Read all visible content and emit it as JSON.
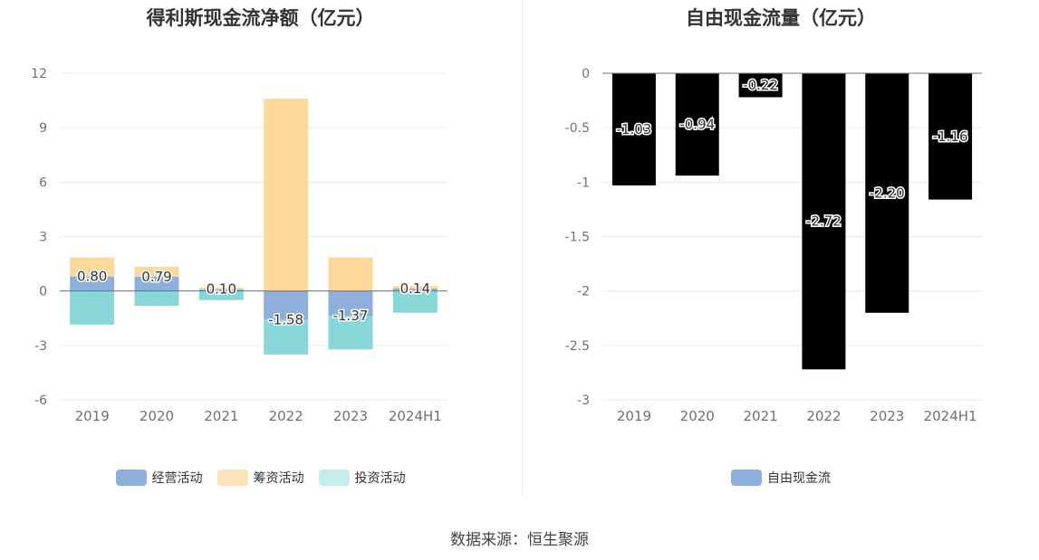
{
  "source": "数据来源：恒生聚源",
  "colors": {
    "operating": "#8eaedc",
    "financing": "#fdd89b",
    "investing": "#88d6d8",
    "grid": "#e6e9f0",
    "axis": "#6e7079",
    "tick_text": "#6e7079"
  },
  "legend_swatch_colors": {
    "operating": "#8eaedc",
    "financing": "#fde3bc",
    "investing": "#c5ecec",
    "fcf": "#8eaedc"
  },
  "chart_data": [
    {
      "id": "left",
      "type": "bar",
      "stacked": true,
      "title": "得利斯现金流净额（亿元）",
      "categories": [
        "2019",
        "2020",
        "2021",
        "2022",
        "2023",
        "2024H1"
      ],
      "y_ticks": [
        "12",
        "9",
        "6",
        "3",
        "0",
        "-3",
        "-6"
      ],
      "ylim": [
        -6,
        12
      ],
      "grid": true,
      "legend_position": "bottom",
      "series": [
        {
          "name": "经营活动",
          "key": "operating",
          "values": [
            0.8,
            0.79,
            0.1,
            -1.58,
            -1.37,
            0.14
          ]
        },
        {
          "name": "筹资活动",
          "key": "financing",
          "values": [
            1.05,
            0.55,
            0.08,
            10.6,
            1.85,
            0.13
          ]
        },
        {
          "name": "投资活动",
          "key": "investing",
          "values": [
            -1.85,
            -0.82,
            -0.5,
            -1.92,
            -1.85,
            -1.2
          ]
        }
      ],
      "data_labels": [
        "0.80",
        "0.79",
        "0.10",
        "-1.58",
        "-1.37",
        "0.14"
      ]
    },
    {
      "id": "right",
      "type": "bar",
      "title": "自由现金流量（亿元）",
      "categories": [
        "2019",
        "2020",
        "2021",
        "2022",
        "2023",
        "2024H1"
      ],
      "y_ticks": [
        "0",
        "-0.5",
        "-1",
        "-1.5",
        "-2",
        "-2.5",
        "-3"
      ],
      "ylim": [
        -3,
        0
      ],
      "grid": true,
      "legend_position": "bottom",
      "series": [
        {
          "name": "自由现金流",
          "key": "fcf",
          "values": [
            -1.03,
            -0.94,
            -0.22,
            -2.72,
            -2.2,
            -1.16
          ]
        }
      ],
      "data_labels": [
        "-1.03",
        "-0.94",
        "-0.22",
        "-2.72",
        "-2.20",
        "-1.16"
      ]
    }
  ]
}
